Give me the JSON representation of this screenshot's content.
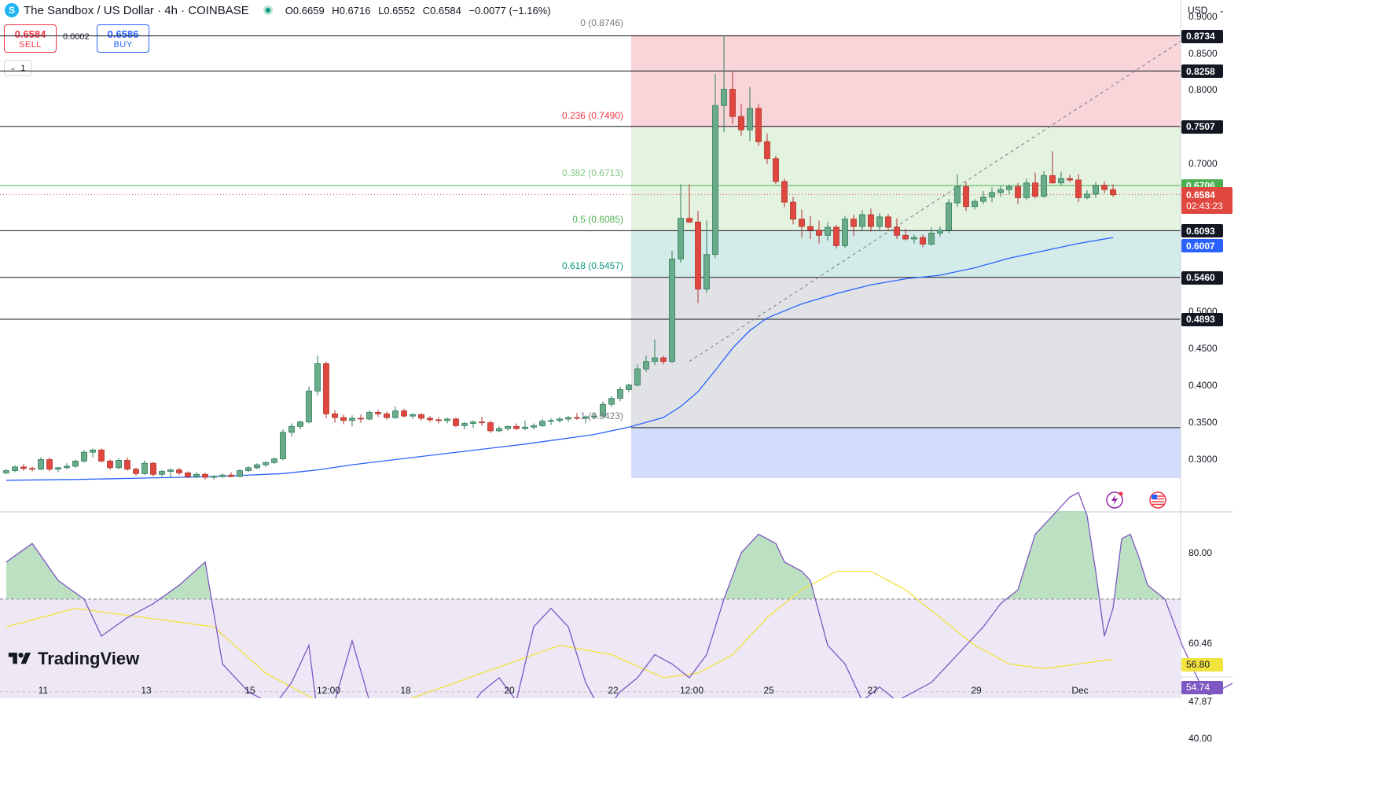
{
  "header": {
    "logo_letter": "S",
    "title": "The Sandbox / US Dollar · 4h · COINBASE",
    "ohlc": {
      "o_label": "O",
      "o": "0.6659",
      "h_label": "H",
      "h": "0.6716",
      "l_label": "L",
      "l": "0.6552",
      "c_label": "C",
      "c": "0.6584",
      "change": "−0.0077 (−1.16%)"
    }
  },
  "trade": {
    "sell_price": "0.6584",
    "sell_label": "SELL",
    "spread": "0.0002",
    "buy_price": "0.6586",
    "buy_label": "BUY"
  },
  "collapse_label": "1",
  "currency": "USD",
  "watermark": "TradingView",
  "colors": {
    "up": "#089981",
    "up_body": "#6aab8a",
    "down": "#e0483f",
    "ma": "#2962ff",
    "rsi": "#7e57c2",
    "rsi_ma": "#f2e33d",
    "fib_red": "#f8d5d8",
    "fib_green": "#e4f2e0",
    "fib_teal": "#d3ecea",
    "fib_gray": "#e1e2e6",
    "fib_blue": "#d2ddfc"
  },
  "chart_data": {
    "type": "candlestick",
    "price_axis": {
      "ticks": [
        "0.9000",
        "0.8500",
        "0.8000",
        "0.7000",
        "0.5000",
        "0.4500",
        "0.4000",
        "0.3500",
        "0.3000"
      ],
      "ylim": [
        0.274,
        0.9287
      ]
    },
    "x_axis": {
      "labels": [
        "11",
        "13",
        "15",
        "12:00",
        "18",
        "20",
        "22",
        "12:00",
        "25",
        "27",
        "29",
        "Dec"
      ]
    },
    "fib_retracement": [
      {
        "label": "0 (0.8746)",
        "value": 0.8746
      },
      {
        "label": "0.236 (0.7490)",
        "value": 0.749
      },
      {
        "label": "0.382 (0.6713)",
        "value": 0.6713
      },
      {
        "label": "0.5 (0.6085)",
        "value": 0.6085
      },
      {
        "label": "0.618 (0.5457)",
        "value": 0.5457
      },
      {
        "label": "1 (0.3423)",
        "value": 0.3423
      }
    ],
    "horizontal_levels": [
      {
        "label": "0.8734",
        "value": 0.8734
      },
      {
        "label": "0.8258",
        "value": 0.8258
      },
      {
        "label": "0.7507",
        "value": 0.7507
      },
      {
        "label": "0.6706",
        "value": 0.6706
      },
      {
        "label": "0.6093",
        "value": 0.6093
      },
      {
        "label": "0.5460",
        "value": 0.546
      },
      {
        "label": "0.4893",
        "value": 0.4893
      }
    ],
    "last_price": {
      "label": "0.6584",
      "value": 0.6584,
      "countdown": "02:43:23"
    },
    "ma_price": {
      "label": "0.6007",
      "value": 0.6007
    },
    "candles": [
      [
        0.281,
        0.286,
        0.279,
        0.284
      ],
      [
        0.284,
        0.291,
        0.282,
        0.289
      ],
      [
        0.289,
        0.293,
        0.284,
        0.287
      ],
      [
        0.287,
        0.29,
        0.283,
        0.286
      ],
      [
        0.286,
        0.302,
        0.285,
        0.299
      ],
      [
        0.299,
        0.302,
        0.283,
        0.286
      ],
      [
        0.286,
        0.289,
        0.282,
        0.288
      ],
      [
        0.288,
        0.294,
        0.286,
        0.29
      ],
      [
        0.29,
        0.299,
        0.288,
        0.297
      ],
      [
        0.297,
        0.312,
        0.295,
        0.309
      ],
      [
        0.309,
        0.314,
        0.302,
        0.312
      ],
      [
        0.312,
        0.314,
        0.295,
        0.297
      ],
      [
        0.297,
        0.299,
        0.285,
        0.288
      ],
      [
        0.288,
        0.301,
        0.286,
        0.298
      ],
      [
        0.298,
        0.302,
        0.284,
        0.286
      ],
      [
        0.286,
        0.288,
        0.277,
        0.28
      ],
      [
        0.28,
        0.298,
        0.278,
        0.294
      ],
      [
        0.294,
        0.296,
        0.276,
        0.279
      ],
      [
        0.279,
        0.285,
        0.276,
        0.283
      ],
      [
        0.283,
        0.287,
        0.275,
        0.285
      ],
      [
        0.285,
        0.288,
        0.278,
        0.281
      ],
      [
        0.281,
        0.283,
        0.274,
        0.276
      ],
      [
        0.276,
        0.282,
        0.274,
        0.279
      ],
      [
        0.279,
        0.281,
        0.272,
        0.275
      ],
      [
        0.275,
        0.278,
        0.272,
        0.276
      ],
      [
        0.276,
        0.28,
        0.274,
        0.278
      ],
      [
        0.278,
        0.282,
        0.275,
        0.276
      ],
      [
        0.276,
        0.286,
        0.275,
        0.284
      ],
      [
        0.284,
        0.29,
        0.282,
        0.288
      ],
      [
        0.288,
        0.294,
        0.286,
        0.292
      ],
      [
        0.292,
        0.297,
        0.289,
        0.295
      ],
      [
        0.295,
        0.302,
        0.293,
        0.3
      ],
      [
        0.3,
        0.34,
        0.298,
        0.336
      ],
      [
        0.336,
        0.348,
        0.33,
        0.344
      ],
      [
        0.344,
        0.352,
        0.34,
        0.35
      ],
      [
        0.35,
        0.398,
        0.348,
        0.392
      ],
      [
        0.392,
        0.44,
        0.386,
        0.429
      ],
      [
        0.429,
        0.432,
        0.355,
        0.361
      ],
      [
        0.361,
        0.366,
        0.349,
        0.356
      ],
      [
        0.356,
        0.36,
        0.347,
        0.352
      ],
      [
        0.352,
        0.359,
        0.344,
        0.355
      ],
      [
        0.355,
        0.36,
        0.349,
        0.354
      ],
      [
        0.354,
        0.366,
        0.352,
        0.363
      ],
      [
        0.363,
        0.366,
        0.357,
        0.361
      ],
      [
        0.361,
        0.364,
        0.353,
        0.356
      ],
      [
        0.356,
        0.371,
        0.354,
        0.365
      ],
      [
        0.365,
        0.368,
        0.356,
        0.358
      ],
      [
        0.358,
        0.362,
        0.354,
        0.36
      ],
      [
        0.36,
        0.362,
        0.352,
        0.355
      ],
      [
        0.355,
        0.358,
        0.35,
        0.353
      ],
      [
        0.353,
        0.356,
        0.348,
        0.352
      ],
      [
        0.352,
        0.356,
        0.348,
        0.354
      ],
      [
        0.354,
        0.356,
        0.343,
        0.345
      ],
      [
        0.345,
        0.35,
        0.34,
        0.348
      ],
      [
        0.348,
        0.352,
        0.342,
        0.35
      ],
      [
        0.35,
        0.357,
        0.345,
        0.349
      ],
      [
        0.349,
        0.352,
        0.335,
        0.338
      ],
      [
        0.338,
        0.344,
        0.336,
        0.341
      ],
      [
        0.341,
        0.345,
        0.338,
        0.344
      ],
      [
        0.344,
        0.348,
        0.339,
        0.341
      ],
      [
        0.341,
        0.352,
        0.339,
        0.343
      ],
      [
        0.343,
        0.348,
        0.34,
        0.345
      ],
      [
        0.345,
        0.354,
        0.343,
        0.351
      ],
      [
        0.351,
        0.355,
        0.346,
        0.352
      ],
      [
        0.352,
        0.357,
        0.349,
        0.354
      ],
      [
        0.354,
        0.358,
        0.35,
        0.356
      ],
      [
        0.356,
        0.362,
        0.353,
        0.355
      ],
      [
        0.355,
        0.359,
        0.348,
        0.357
      ],
      [
        0.357,
        0.362,
        0.354,
        0.358
      ],
      [
        0.358,
        0.378,
        0.356,
        0.374
      ],
      [
        0.374,
        0.385,
        0.37,
        0.382
      ],
      [
        0.382,
        0.398,
        0.378,
        0.394
      ],
      [
        0.394,
        0.402,
        0.39,
        0.4
      ],
      [
        0.4,
        0.428,
        0.398,
        0.422
      ],
      [
        0.422,
        0.44,
        0.418,
        0.432
      ],
      [
        0.432,
        0.462,
        0.427,
        0.437
      ],
      [
        0.437,
        0.44,
        0.428,
        0.432
      ],
      [
        0.432,
        0.582,
        0.43,
        0.571
      ],
      [
        0.571,
        0.672,
        0.566,
        0.626
      ],
      [
        0.626,
        0.672,
        0.62,
        0.621
      ],
      [
        0.621,
        0.636,
        0.511,
        0.53
      ],
      [
        0.53,
        0.623,
        0.525,
        0.577
      ],
      [
        0.577,
        0.822,
        0.572,
        0.779
      ],
      [
        0.779,
        0.874,
        0.743,
        0.801
      ],
      [
        0.801,
        0.826,
        0.754,
        0.764
      ],
      [
        0.764,
        0.781,
        0.738,
        0.746
      ],
      [
        0.746,
        0.804,
        0.731,
        0.775
      ],
      [
        0.775,
        0.781,
        0.724,
        0.73
      ],
      [
        0.73,
        0.741,
        0.7,
        0.707
      ],
      [
        0.707,
        0.711,
        0.672,
        0.676
      ],
      [
        0.676,
        0.68,
        0.641,
        0.648
      ],
      [
        0.648,
        0.655,
        0.618,
        0.625
      ],
      [
        0.625,
        0.638,
        0.6,
        0.615
      ],
      [
        0.615,
        0.629,
        0.598,
        0.61
      ],
      [
        0.61,
        0.623,
        0.592,
        0.603
      ],
      [
        0.603,
        0.621,
        0.596,
        0.614
      ],
      [
        0.614,
        0.617,
        0.585,
        0.589
      ],
      [
        0.589,
        0.629,
        0.586,
        0.625
      ],
      [
        0.625,
        0.631,
        0.602,
        0.615
      ],
      [
        0.615,
        0.637,
        0.61,
        0.631
      ],
      [
        0.631,
        0.639,
        0.608,
        0.615
      ],
      [
        0.615,
        0.633,
        0.61,
        0.628
      ],
      [
        0.628,
        0.632,
        0.609,
        0.614
      ],
      [
        0.614,
        0.626,
        0.598,
        0.603
      ],
      [
        0.603,
        0.612,
        0.596,
        0.598
      ],
      [
        0.598,
        0.604,
        0.592,
        0.6
      ],
      [
        0.6,
        0.604,
        0.587,
        0.591
      ],
      [
        0.591,
        0.614,
        0.589,
        0.606
      ],
      [
        0.606,
        0.615,
        0.601,
        0.61
      ],
      [
        0.61,
        0.652,
        0.606,
        0.647
      ],
      [
        0.647,
        0.686,
        0.642,
        0.669
      ],
      [
        0.669,
        0.675,
        0.636,
        0.642
      ],
      [
        0.642,
        0.652,
        0.638,
        0.649
      ],
      [
        0.649,
        0.663,
        0.645,
        0.655
      ],
      [
        0.655,
        0.668,
        0.648,
        0.661
      ],
      [
        0.661,
        0.67,
        0.655,
        0.665
      ],
      [
        0.665,
        0.672,
        0.659,
        0.669
      ],
      [
        0.669,
        0.674,
        0.646,
        0.654
      ],
      [
        0.654,
        0.68,
        0.651,
        0.674
      ],
      [
        0.674,
        0.688,
        0.653,
        0.656
      ],
      [
        0.656,
        0.69,
        0.654,
        0.684
      ],
      [
        0.684,
        0.717,
        0.673,
        0.674
      ],
      [
        0.674,
        0.689,
        0.671,
        0.68
      ],
      [
        0.68,
        0.685,
        0.675,
        0.678
      ],
      [
        0.678,
        0.686,
        0.648,
        0.654
      ],
      [
        0.654,
        0.664,
        0.652,
        0.659
      ],
      [
        0.659,
        0.675,
        0.654,
        0.671
      ],
      [
        0.671,
        0.676,
        0.66,
        0.665
      ],
      [
        0.665,
        0.672,
        0.655,
        0.658
      ]
    ],
    "moving_average": [
      [
        0,
        0.271
      ],
      [
        8,
        0.272
      ],
      [
        16,
        0.274
      ],
      [
        24,
        0.276
      ],
      [
        32,
        0.28
      ],
      [
        36,
        0.285
      ],
      [
        40,
        0.292
      ],
      [
        50,
        0.306
      ],
      [
        60,
        0.32
      ],
      [
        68,
        0.333
      ],
      [
        72,
        0.343
      ],
      [
        76,
        0.356
      ],
      [
        78,
        0.371
      ],
      [
        80,
        0.391
      ],
      [
        82,
        0.42
      ],
      [
        84,
        0.45
      ],
      [
        86,
        0.474
      ],
      [
        88,
        0.491
      ],
      [
        92,
        0.51
      ],
      [
        96,
        0.524
      ],
      [
        100,
        0.536
      ],
      [
        104,
        0.544
      ],
      [
        108,
        0.549
      ],
      [
        112,
        0.559
      ],
      [
        116,
        0.572
      ],
      [
        120,
        0.582
      ],
      [
        124,
        0.592
      ],
      [
        128,
        0.6
      ]
    ],
    "rsi": {
      "levels": [
        "80.00",
        "60.46",
        "56.80",
        "54.74",
        "47.87",
        "40.00"
      ],
      "value": 54.74,
      "ma_value": 56.8,
      "upper_band": 70,
      "lower_band": 30,
      "ylim": [
        12,
        95
      ],
      "rsi_values": [
        [
          0,
          78
        ],
        [
          3,
          82
        ],
        [
          6,
          74
        ],
        [
          9,
          70
        ],
        [
          11,
          62
        ],
        [
          14,
          66
        ],
        [
          17,
          69
        ],
        [
          20,
          73
        ],
        [
          23,
          78
        ],
        [
          25,
          56
        ],
        [
          28,
          50
        ],
        [
          31,
          47
        ],
        [
          33,
          52
        ],
        [
          35,
          60
        ],
        [
          36,
          45
        ],
        [
          38,
          48
        ],
        [
          40,
          61
        ],
        [
          42,
          48
        ],
        [
          44,
          38
        ],
        [
          46,
          42
        ],
        [
          48,
          47
        ],
        [
          50,
          39
        ],
        [
          52,
          43
        ],
        [
          55,
          50
        ],
        [
          57,
          53
        ],
        [
          59,
          48
        ],
        [
          61,
          64
        ],
        [
          63,
          68
        ],
        [
          65,
          64
        ],
        [
          67,
          52
        ],
        [
          69,
          45
        ],
        [
          71,
          50
        ],
        [
          73,
          53
        ],
        [
          75,
          58
        ],
        [
          77,
          56
        ],
        [
          79,
          53
        ],
        [
          81,
          58
        ],
        [
          83,
          70
        ],
        [
          85,
          80
        ],
        [
          87,
          84
        ],
        [
          89,
          82
        ],
        [
          90,
          78
        ],
        [
          92,
          76
        ],
        [
          93,
          74
        ],
        [
          95,
          60
        ],
        [
          97,
          56
        ],
        [
          99,
          48
        ],
        [
          101,
          51
        ],
        [
          103,
          48
        ],
        [
          105,
          50
        ],
        [
          107,
          52
        ],
        [
          109,
          56
        ],
        [
          111,
          60
        ],
        [
          113,
          64
        ],
        [
          115,
          69
        ],
        [
          117,
          72
        ],
        [
          118,
          78
        ],
        [
          119,
          84
        ],
        [
          121,
          88
        ],
        [
          123,
          92
        ],
        [
          124,
          93
        ],
        [
          125,
          88
        ],
        [
          126,
          76
        ],
        [
          127,
          62
        ],
        [
          128,
          68
        ],
        [
          129,
          83
        ],
        [
          130,
          84
        ],
        [
          131,
          79
        ],
        [
          132,
          73
        ],
        [
          134,
          70
        ],
        [
          136,
          60
        ],
        [
          138,
          52
        ],
        [
          140,
          50
        ],
        [
          142,
          52
        ],
        [
          144,
          46
        ],
        [
          146,
          50
        ],
        [
          148,
          47
        ],
        [
          150,
          48
        ],
        [
          152,
          52
        ],
        [
          154,
          50
        ],
        [
          156,
          55
        ],
        [
          158,
          52
        ],
        [
          160,
          55
        ],
        [
          162,
          57
        ],
        [
          164,
          53
        ],
        [
          166,
          54
        ]
      ],
      "ma_values": [
        [
          0,
          64
        ],
        [
          8,
          68
        ],
        [
          16,
          66
        ],
        [
          24,
          64
        ],
        [
          30,
          54
        ],
        [
          36,
          48
        ],
        [
          40,
          47
        ],
        [
          46,
          48
        ],
        [
          52,
          52
        ],
        [
          58,
          56
        ],
        [
          64,
          60
        ],
        [
          70,
          58
        ],
        [
          76,
          53
        ],
        [
          80,
          54
        ],
        [
          84,
          58
        ],
        [
          88,
          66
        ],
        [
          92,
          72
        ],
        [
          96,
          76
        ],
        [
          100,
          76
        ],
        [
          104,
          72
        ],
        [
          108,
          66
        ],
        [
          112,
          60
        ],
        [
          116,
          56
        ],
        [
          120,
          55
        ],
        [
          124,
          56
        ],
        [
          128,
          57
        ]
      ]
    }
  }
}
